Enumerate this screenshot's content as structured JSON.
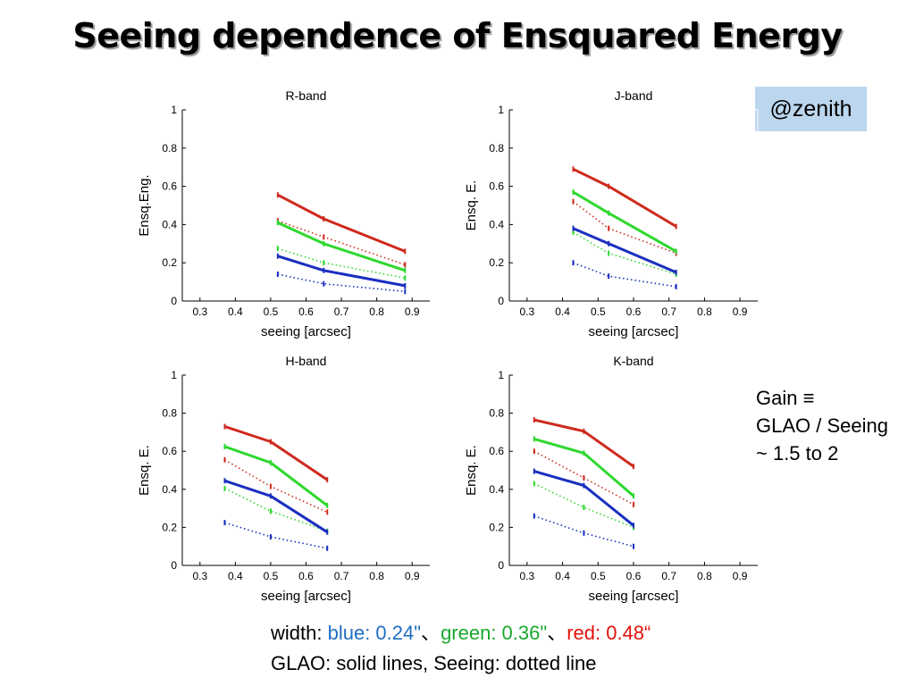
{
  "slide": {
    "title": "Seeing dependence of Ensquared Energy",
    "badge": "@zenith",
    "gain_lines": [
      "Gain ≡",
      "GLAO / Seeing",
      "~ 1.5 to 2"
    ],
    "footer": {
      "width_prefix": "width: ",
      "blue_text": "blue: 0.24\"",
      "sep1": "、",
      "green_text": "green: 0.36\"",
      "sep2": "、",
      "red_text": "red: 0.48“",
      "line2": "GLAO: solid lines, Seeing: dotted line"
    }
  },
  "colors": {
    "blue": "#1a2fbf",
    "green": "#2ed82e",
    "red": "#cf2a1e",
    "footer_blue": "#1f6fc2",
    "footer_green": "#1aa82c",
    "footer_red": "#e3120b",
    "badge_bg": "#bcd6ee"
  },
  "chart_data": [
    {
      "type": "line",
      "title": "R-band",
      "xlabel": "seeing [arcsec]",
      "ylabel": "Ensq.Eng.",
      "xlim": [
        0.25,
        0.95
      ],
      "ylim": [
        0,
        1
      ],
      "xticks": [
        "0.3",
        "0.4",
        "0.5",
        "0.6",
        "0.7",
        "0.8",
        "0.9"
      ],
      "yticks": [
        "0",
        "0.2",
        "0.4",
        "0.6",
        "0.8",
        "1"
      ],
      "series": [
        {
          "color": "red",
          "style": "solid",
          "x": [
            0.52,
            0.65,
            0.88
          ],
          "y": [
            0.555,
            0.43,
            0.26
          ]
        },
        {
          "color": "green",
          "style": "solid",
          "x": [
            0.52,
            0.65,
            0.88
          ],
          "y": [
            0.41,
            0.3,
            0.16
          ]
        },
        {
          "color": "blue",
          "style": "solid",
          "x": [
            0.52,
            0.65,
            0.88
          ],
          "y": [
            0.235,
            0.16,
            0.08
          ]
        },
        {
          "color": "red",
          "style": "dotted",
          "x": [
            0.52,
            0.65,
            0.88
          ],
          "y": [
            0.42,
            0.335,
            0.19
          ]
        },
        {
          "color": "green",
          "style": "dotted",
          "x": [
            0.52,
            0.65,
            0.88
          ],
          "y": [
            0.275,
            0.2,
            0.12
          ]
        },
        {
          "color": "blue",
          "style": "dotted",
          "x": [
            0.52,
            0.65,
            0.88
          ],
          "y": [
            0.14,
            0.09,
            0.05
          ]
        }
      ]
    },
    {
      "type": "line",
      "title": "J-band",
      "xlabel": "seeing [arcsec]",
      "ylabel": "Ensq. E.",
      "xlim": [
        0.25,
        0.95
      ],
      "ylim": [
        0,
        1
      ],
      "xticks": [
        "0.3",
        "0.4",
        "0.5",
        "0.6",
        "0.7",
        "0.8",
        "0.9"
      ],
      "yticks": [
        "0",
        "0.2",
        "0.4",
        "0.6",
        "0.8",
        "1"
      ],
      "series": [
        {
          "color": "red",
          "style": "solid",
          "x": [
            0.43,
            0.53,
            0.72
          ],
          "y": [
            0.69,
            0.6,
            0.39
          ]
        },
        {
          "color": "green",
          "style": "solid",
          "x": [
            0.43,
            0.53,
            0.72
          ],
          "y": [
            0.57,
            0.46,
            0.26
          ]
        },
        {
          "color": "blue",
          "style": "solid",
          "x": [
            0.43,
            0.53,
            0.72
          ],
          "y": [
            0.38,
            0.3,
            0.15
          ]
        },
        {
          "color": "red",
          "style": "dotted",
          "x": [
            0.43,
            0.53,
            0.72
          ],
          "y": [
            0.52,
            0.38,
            0.25
          ]
        },
        {
          "color": "green",
          "style": "dotted",
          "x": [
            0.43,
            0.53,
            0.72
          ],
          "y": [
            0.36,
            0.25,
            0.14
          ]
        },
        {
          "color": "blue",
          "style": "dotted",
          "x": [
            0.43,
            0.53,
            0.72
          ],
          "y": [
            0.2,
            0.13,
            0.075
          ]
        }
      ]
    },
    {
      "type": "line",
      "title": "H-band",
      "xlabel": "seeing [arcsec]",
      "ylabel": "Ensq. E.",
      "xlim": [
        0.25,
        0.95
      ],
      "ylim": [
        0,
        1
      ],
      "xticks": [
        "0.3",
        "0.4",
        "0.5",
        "0.6",
        "0.7",
        "0.8",
        "0.9"
      ],
      "yticks": [
        "0",
        "0.2",
        "0.4",
        "0.6",
        "0.8",
        "1"
      ],
      "series": [
        {
          "color": "red",
          "style": "solid",
          "x": [
            0.37,
            0.5,
            0.66
          ],
          "y": [
            0.73,
            0.65,
            0.45
          ]
        },
        {
          "color": "green",
          "style": "solid",
          "x": [
            0.37,
            0.5,
            0.66
          ],
          "y": [
            0.625,
            0.54,
            0.315
          ]
        },
        {
          "color": "blue",
          "style": "solid",
          "x": [
            0.37,
            0.5,
            0.66
          ],
          "y": [
            0.445,
            0.365,
            0.175
          ]
        },
        {
          "color": "red",
          "style": "dotted",
          "x": [
            0.37,
            0.5,
            0.66
          ],
          "y": [
            0.555,
            0.415,
            0.28
          ]
        },
        {
          "color": "green",
          "style": "dotted",
          "x": [
            0.37,
            0.5,
            0.66
          ],
          "y": [
            0.405,
            0.285,
            0.18
          ]
        },
        {
          "color": "blue",
          "style": "dotted",
          "x": [
            0.37,
            0.5,
            0.66
          ],
          "y": [
            0.225,
            0.15,
            0.09
          ]
        }
      ]
    },
    {
      "type": "line",
      "title": "K-band",
      "xlabel": "seeing [arcsec]",
      "ylabel": "Ensq. E.",
      "xlim": [
        0.25,
        0.95
      ],
      "ylim": [
        0,
        1
      ],
      "xticks": [
        "0.3",
        "0.4",
        "0.5",
        "0.6",
        "0.7",
        "0.8",
        "0.9"
      ],
      "yticks": [
        "0",
        "0.2",
        "0.4",
        "0.6",
        "0.8",
        "1"
      ],
      "series": [
        {
          "color": "red",
          "style": "solid",
          "x": [
            0.32,
            0.46,
            0.6
          ],
          "y": [
            0.765,
            0.705,
            0.52
          ]
        },
        {
          "color": "green",
          "style": "solid",
          "x": [
            0.32,
            0.46,
            0.6
          ],
          "y": [
            0.665,
            0.59,
            0.365
          ]
        },
        {
          "color": "blue",
          "style": "solid",
          "x": [
            0.32,
            0.46,
            0.6
          ],
          "y": [
            0.495,
            0.42,
            0.21
          ]
        },
        {
          "color": "red",
          "style": "dotted",
          "x": [
            0.32,
            0.46,
            0.6
          ],
          "y": [
            0.6,
            0.46,
            0.32
          ]
        },
        {
          "color": "green",
          "style": "dotted",
          "x": [
            0.32,
            0.46,
            0.6
          ],
          "y": [
            0.43,
            0.305,
            0.2
          ]
        },
        {
          "color": "blue",
          "style": "dotted",
          "x": [
            0.32,
            0.46,
            0.6
          ],
          "y": [
            0.26,
            0.17,
            0.1
          ]
        }
      ]
    }
  ]
}
